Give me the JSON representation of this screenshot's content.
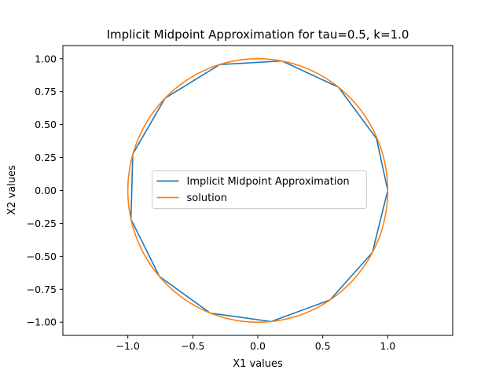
{
  "chart_data": {
    "type": "line",
    "title": "Implicit Midpoint Approximation for tau=0.5, k=1.0",
    "xlabel": "X1 values",
    "ylabel": "X2 values",
    "xlim": [
      -1.5,
      1.5
    ],
    "ylim": [
      -1.1,
      1.1
    ],
    "x_ticks": [
      -1.0,
      -0.5,
      0.0,
      0.5,
      1.0
    ],
    "x_tick_labels": [
      "−1.0",
      "−0.5",
      "0.0",
      "0.5",
      "1.0"
    ],
    "y_ticks": [
      -1.0,
      -0.75,
      -0.5,
      -0.25,
      0.0,
      0.25,
      0.5,
      0.75,
      1.0
    ],
    "y_tick_labels": [
      "−1.00",
      "−0.75",
      "−0.50",
      "−0.25",
      "0.00",
      "0.25",
      "0.50",
      "0.75",
      "1.00"
    ],
    "grid": false,
    "legend_position": "center",
    "series": [
      {
        "name": "Implicit Midpoint Approximation",
        "color": "#1f77b4",
        "x": [
          1.0,
          0.882,
          0.556,
          0.103,
          -0.366,
          -0.757,
          -0.976,
          -0.962,
          -0.714,
          -0.292,
          0.186,
          0.621,
          0.914,
          1.0
        ],
        "y": [
          0.0,
          -0.471,
          -0.831,
          -0.995,
          -0.931,
          -0.653,
          -0.218,
          0.276,
          0.7,
          0.956,
          0.983,
          0.784,
          0.393,
          0.0
        ]
      },
      {
        "name": "solution",
        "color": "#ff7f0e",
        "function": "unit-circle",
        "radius": 1.0
      }
    ]
  }
}
